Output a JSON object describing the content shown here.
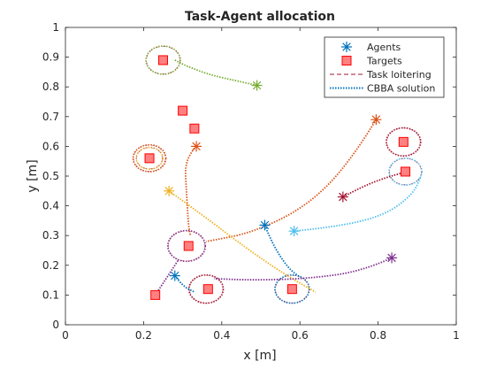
{
  "chart_data": {
    "type": "scatter",
    "title": "Task-Agent allocation",
    "xlabel": "x [m]",
    "ylabel": "y [m]",
    "xlim": [
      0,
      1
    ],
    "ylim": [
      0,
      1
    ],
    "xticks": [
      0,
      0.2,
      0.4,
      0.6,
      0.8,
      1
    ],
    "yticks": [
      0,
      0.1,
      0.2,
      0.3,
      0.4,
      0.5,
      0.6,
      0.7,
      0.8,
      0.9,
      1
    ],
    "xtick_labels": [
      "0",
      "0.2",
      "0.4",
      "0.6",
      "0.8",
      "1"
    ],
    "ytick_labels": [
      "0",
      "0.1",
      "0.2",
      "0.3",
      "0.4",
      "0.5",
      "0.6",
      "0.7",
      "0.8",
      "0.9",
      "1"
    ],
    "grid": false,
    "legend_position": "top-right",
    "legend": [
      {
        "label": "Agents",
        "marker": "asterisk",
        "color": "#0072bd"
      },
      {
        "label": "Targets",
        "marker": "square",
        "color": "#ff0000",
        "fill": "#ff8080"
      },
      {
        "label": "Task loitering",
        "style": "dashed",
        "color": "#a2142f"
      },
      {
        "label": "CBBA solution",
        "style": "dotted",
        "color": "#0072bd"
      }
    ],
    "agents": [
      {
        "x": 0.49,
        "y": 0.805,
        "color": "#77ac30"
      },
      {
        "x": 0.335,
        "y": 0.6,
        "color": "#d95319"
      },
      {
        "x": 0.265,
        "y": 0.45,
        "color": "#edb120"
      },
      {
        "x": 0.795,
        "y": 0.69,
        "color": "#d95319"
      },
      {
        "x": 0.71,
        "y": 0.43,
        "color": "#a2142f"
      },
      {
        "x": 0.51,
        "y": 0.335,
        "color": "#0072bd"
      },
      {
        "x": 0.585,
        "y": 0.315,
        "color": "#4dbeee"
      },
      {
        "x": 0.835,
        "y": 0.225,
        "color": "#7e2f8e"
      },
      {
        "x": 0.28,
        "y": 0.165,
        "color": "#0072bd"
      }
    ],
    "targets": [
      {
        "x": 0.25,
        "y": 0.89
      },
      {
        "x": 0.3,
        "y": 0.72
      },
      {
        "x": 0.33,
        "y": 0.66
      },
      {
        "x": 0.215,
        "y": 0.56
      },
      {
        "x": 0.865,
        "y": 0.615
      },
      {
        "x": 0.87,
        "y": 0.515
      },
      {
        "x": 0.315,
        "y": 0.265
      },
      {
        "x": 0.365,
        "y": 0.12
      },
      {
        "x": 0.58,
        "y": 0.12
      },
      {
        "x": 0.23,
        "y": 0.1
      }
    ],
    "loiter_circles": [
      {
        "x": 0.25,
        "y": 0.89,
        "r": 0.044,
        "color": "#77ac30"
      },
      {
        "x": 0.215,
        "y": 0.56,
        "r": 0.042,
        "color": "#d95319"
      },
      {
        "x": 0.215,
        "y": 0.56,
        "r": 0.034,
        "color": "#edb120"
      },
      {
        "x": 0.865,
        "y": 0.615,
        "r": 0.044,
        "color": "#a2142f"
      },
      {
        "x": 0.87,
        "y": 0.515,
        "r": 0.042,
        "color": "#4dbeee"
      },
      {
        "x": 0.31,
        "y": 0.265,
        "r": 0.048,
        "color": "#7e2f8e"
      },
      {
        "x": 0.36,
        "y": 0.12,
        "r": 0.044,
        "color": "#a2142f"
      },
      {
        "x": 0.58,
        "y": 0.12,
        "r": 0.044,
        "color": "#0072bd"
      }
    ],
    "paths": [
      {
        "color": "#77ac30",
        "points": [
          [
            0.49,
            0.805
          ],
          [
            0.44,
            0.82
          ],
          [
            0.37,
            0.84
          ],
          [
            0.31,
            0.87
          ],
          [
            0.28,
            0.89
          ]
        ]
      },
      {
        "color": "#d95319",
        "points": [
          [
            0.335,
            0.6
          ],
          [
            0.305,
            0.56
          ],
          [
            0.31,
            0.44
          ],
          [
            0.315,
            0.33
          ],
          [
            0.32,
            0.3
          ]
        ]
      },
      {
        "color": "#d95319",
        "points": [
          [
            0.795,
            0.69
          ],
          [
            0.73,
            0.55
          ],
          [
            0.62,
            0.4
          ],
          [
            0.48,
            0.31
          ],
          [
            0.36,
            0.28
          ]
        ]
      },
      {
        "color": "#edb120",
        "points": [
          [
            0.265,
            0.45
          ],
          [
            0.35,
            0.37
          ],
          [
            0.46,
            0.26
          ],
          [
            0.56,
            0.17
          ],
          [
            0.64,
            0.11
          ]
        ]
      },
      {
        "color": "#a2142f",
        "points": [
          [
            0.71,
            0.43
          ],
          [
            0.76,
            0.465
          ],
          [
            0.82,
            0.495
          ],
          [
            0.86,
            0.51
          ]
        ]
      },
      {
        "color": "#4dbeee",
        "points": [
          [
            0.585,
            0.315
          ],
          [
            0.7,
            0.33
          ],
          [
            0.82,
            0.37
          ],
          [
            0.89,
            0.44
          ],
          [
            0.91,
            0.5
          ]
        ]
      },
      {
        "color": "#7e2f8e",
        "points": [
          [
            0.835,
            0.225
          ],
          [
            0.76,
            0.18
          ],
          [
            0.62,
            0.155
          ],
          [
            0.48,
            0.15
          ],
          [
            0.38,
            0.155
          ]
        ]
      },
      {
        "color": "#0072bd",
        "points": [
          [
            0.51,
            0.335
          ],
          [
            0.53,
            0.27
          ],
          [
            0.57,
            0.19
          ],
          [
            0.6,
            0.16
          ]
        ]
      },
      {
        "color": "#0072bd",
        "points": [
          [
            0.28,
            0.165
          ],
          [
            0.3,
            0.13
          ],
          [
            0.33,
            0.11
          ]
        ]
      },
      {
        "color": "#7e2f8e",
        "points": [
          [
            0.23,
            0.1
          ],
          [
            0.26,
            0.16
          ],
          [
            0.29,
            0.22
          ]
        ]
      }
    ]
  }
}
